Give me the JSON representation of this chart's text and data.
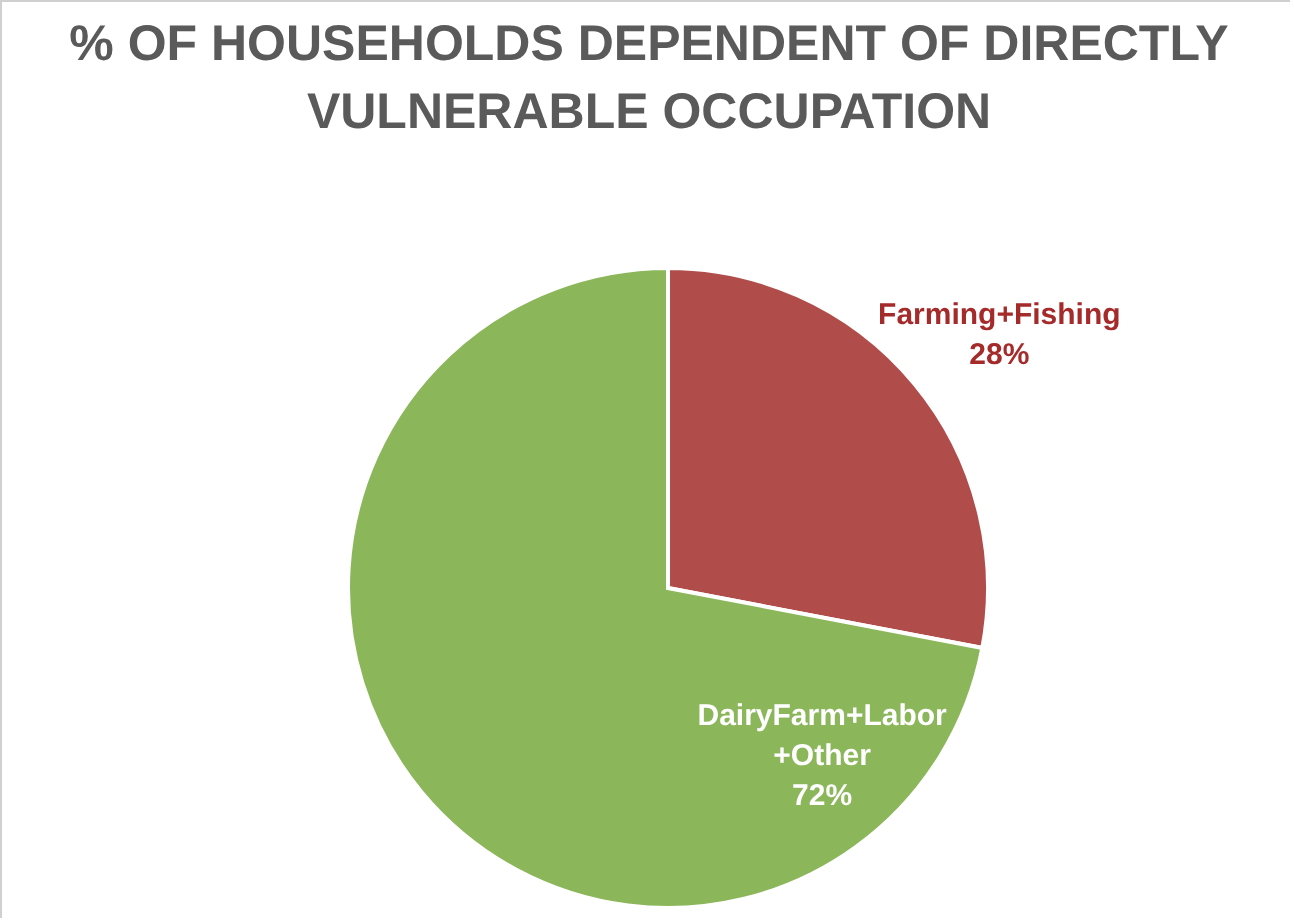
{
  "chart_data": {
    "type": "pie",
    "title": "% OF HOUSEHOLDS DEPENDENT OF DIRECTLY VULNERABLE OCCUPATION",
    "categories": [
      "Farming+Fishing",
      "DairyFarm+Labor+Other"
    ],
    "values": [
      28,
      72
    ],
    "colors": [
      "#b04c4a",
      "#8cb65a"
    ],
    "value_labels": [
      "28%",
      "72%"
    ],
    "legend": false
  }
}
